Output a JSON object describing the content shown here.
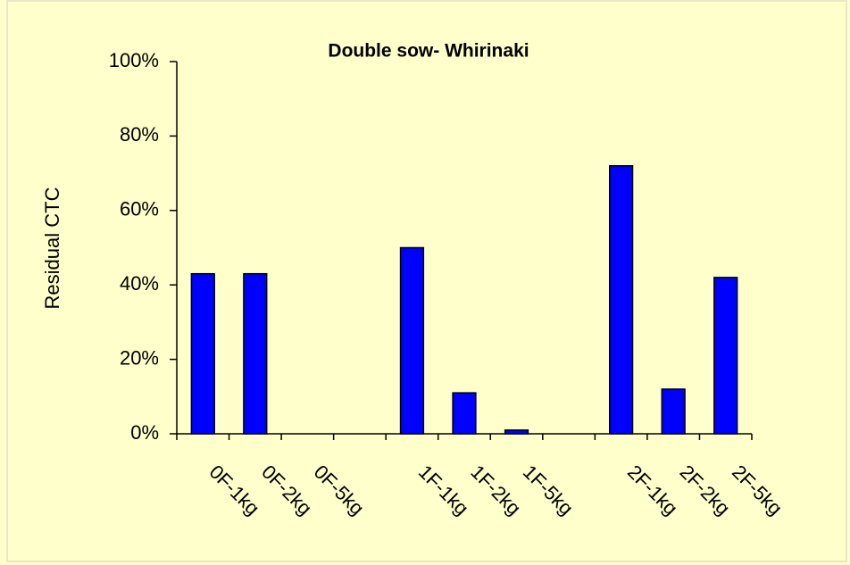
{
  "chart_data": {
    "type": "bar",
    "title": "Double sow- Whirinaki",
    "y_label": "Residual CTC",
    "categories": [
      "0F-1kg",
      "0F-2kg",
      "0F-5kg",
      null,
      "1F-1kg",
      "1F-2kg",
      "1F-5kg",
      null,
      "2F-1kg",
      "2F-2kg",
      "2F-5kg"
    ],
    "values": [
      43,
      43,
      0,
      null,
      50,
      11,
      1,
      null,
      72,
      12,
      42
    ],
    "color": "#0000ff",
    "ylim": [
      0,
      100
    ],
    "yticks": [
      {
        "value": 0,
        "label": "0%"
      },
      {
        "value": 20,
        "label": "20%"
      },
      {
        "value": 40,
        "label": "40%"
      },
      {
        "value": 60,
        "label": "60%"
      },
      {
        "value": 80,
        "label": "80%"
      },
      {
        "value": 100,
        "label": "100%"
      }
    ],
    "grid": false
  }
}
